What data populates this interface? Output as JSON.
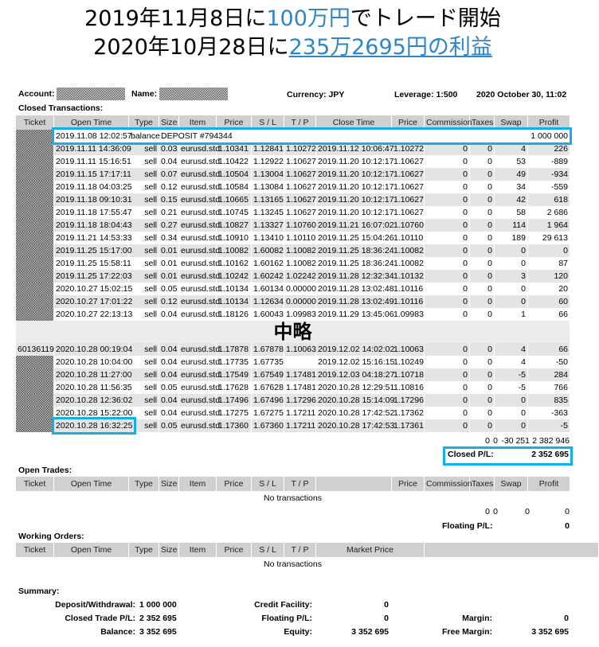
{
  "headline": {
    "line1_a": "2019年11月8日に",
    "line1_b": "100万円",
    "line1_c": "でトレード開始",
    "line2_a": "2020年10月28日に",
    "line2_b": "235万2695円の利益"
  },
  "header": {
    "account_label": "Account:",
    "name_label": "Name:",
    "currency": "Currency: JPY",
    "leverage": "Leverage: 1:500",
    "datetime": "2020 October 30, 11:02"
  },
  "closed": {
    "title": "Closed Transactions:",
    "columns": [
      "Ticket",
      "Open Time",
      "Type",
      "Size",
      "Item",
      "Price",
      "S / L",
      "T / P",
      "Close Time",
      "Price",
      "Commission",
      "Taxes",
      "Swap",
      "Profit"
    ],
    "deposit": {
      "open_time": "2019.11.08 12:02:57",
      "type": "balance",
      "item": "DEPOSIT #794344",
      "profit": "1 000 000"
    },
    "rows": [
      [
        "",
        "2019.11.11 14:36:09",
        "sell",
        "0.03",
        "eurusd.std",
        "1.10341",
        "1.12841",
        "1.10272",
        "2019.11.12 10:06:47",
        "1.10272",
        "0",
        "0",
        "4",
        "226"
      ],
      [
        "",
        "2019.11.11 15:16:51",
        "sell",
        "0.04",
        "eurusd.std",
        "1.10422",
        "1.12922",
        "1.10627",
        "2019.11.20 10:12:17",
        "1.10627",
        "0",
        "0",
        "53",
        "-889"
      ],
      [
        "",
        "2019.11.15 17:17:11",
        "sell",
        "0.07",
        "eurusd.std",
        "1.10504",
        "1.13004",
        "1.10627",
        "2019.11.20 10:12:17",
        "1.10627",
        "0",
        "0",
        "49",
        "-934"
      ],
      [
        "",
        "2019.11.18 04:03:25",
        "sell",
        "0.12",
        "eurusd.std",
        "1.10584",
        "1.13084",
        "1.10627",
        "2019.11.20 10:12:17",
        "1.10627",
        "0",
        "0",
        "34",
        "-559"
      ],
      [
        "",
        "2019.11.18 09:10:31",
        "sell",
        "0.15",
        "eurusd.std",
        "1.10665",
        "1.13165",
        "1.10627",
        "2019.11.20 10:12:17",
        "1.10627",
        "0",
        "0",
        "42",
        "618"
      ],
      [
        "",
        "2019.11.18 17:55:47",
        "sell",
        "0.21",
        "eurusd.std",
        "1.10745",
        "1.13245",
        "1.10627",
        "2019.11.20 10:12:17",
        "1.10627",
        "0",
        "0",
        "58",
        "2 686"
      ],
      [
        "",
        "2019.11.18 18:04:43",
        "sell",
        "0.27",
        "eurusd.std",
        "1.10827",
        "1.13327",
        "1.10760",
        "2019.11.21 16:07:02",
        "1.10760",
        "0",
        "0",
        "114",
        "1 964"
      ],
      [
        "",
        "2019.11.21 14:53:33",
        "sell",
        "0.34",
        "eurusd.std",
        "1.10910",
        "1.13410",
        "1.10110",
        "2019.11.25 15:04:26",
        "1.10110",
        "0",
        "0",
        "189",
        "29 613"
      ],
      [
        "",
        "2019.11.25 15:17:00",
        "sell",
        "0.01",
        "eurusd.std",
        "1.10082",
        "1.60082",
        "1.10082",
        "2019.11.25 18:36:24",
        "1.10082",
        "0",
        "0",
        "0",
        "0"
      ],
      [
        "",
        "2019.11.25 15:58:11",
        "sell",
        "0.01",
        "eurusd.std",
        "1.10162",
        "1.60162",
        "1.10082",
        "2019.11.25 18:36:24",
        "1.10082",
        "0",
        "0",
        "0",
        "87"
      ],
      [
        "",
        "2019.11.25 17:22:03",
        "sell",
        "0.01",
        "eurusd.std",
        "1.10242",
        "1.60242",
        "1.02242",
        "2019.11.28 12:32:34",
        "1.10132",
        "0",
        "0",
        "3",
        "120"
      ],
      [
        "",
        "2020.10.27 15:02:15",
        "sell",
        "0.05",
        "eurusd.std",
        "1.10134",
        "1.60134",
        "0.00000",
        "2019.11.28 13:02:48",
        "1.10116",
        "0",
        "0",
        "0",
        "20"
      ],
      [
        "",
        "2020.10.27 17:01:22",
        "sell",
        "0.12",
        "eurusd.std",
        "1.10134",
        "1.12634",
        "0.00000",
        "2019.11.28 13:02:49",
        "1.10116",
        "0",
        "0",
        "0",
        "60"
      ],
      [
        "",
        "2020.10.27 22:13:13",
        "sell",
        "0.04",
        "eurusd.std",
        "1.18126",
        "1.60043",
        "1.09983",
        "2019.11.29 13:45:06",
        "1.09983",
        "0",
        "0",
        "1",
        "66"
      ],
      [
        "60136119",
        "2020.10.28 00:19:04",
        "sell",
        "0.04",
        "eurusd.std",
        "1.17878",
        "1.67878",
        "1.10063",
        "2019.12.02 14:02:02",
        "1.10063",
        "0",
        "0",
        "4",
        "66"
      ],
      [
        "",
        "2020.10.28 10:04:00",
        "sell",
        "0.04",
        "eurusd.std",
        "1.17735",
        "1.67735",
        "",
        "2019.12.02 15:16:15",
        "1.10249",
        "0",
        "0",
        "4",
        "-50"
      ],
      [
        "",
        "2020.10.28 11:27:00",
        "sell",
        "0.04",
        "eurusd.std",
        "1.17549",
        "1.67549",
        "1.17481",
        "2019.12.03 04:18:27",
        "1.10718",
        "0",
        "0",
        "-5",
        "284"
      ],
      [
        "",
        "2020.10.28 11:56:35",
        "sell",
        "0.05",
        "eurusd.std",
        "1.17628",
        "1.67628",
        "1.17481",
        "2020.10.28 12:29:51",
        "1.10816",
        "0",
        "0",
        "-5",
        "766"
      ],
      [
        "",
        "2020.10.28 12:36:02",
        "sell",
        "0.04",
        "eurusd.std",
        "1.17496",
        "1.67496",
        "1.17296",
        "2020.10.28 15:14:09",
        "1.17296",
        "0",
        "0",
        "0",
        "835"
      ],
      [
        "",
        "2020.10.28 15:22:00",
        "sell",
        "0.04",
        "eurusd.std",
        "1.17275",
        "1.67275",
        "1.17211",
        "2020.10.28 17:42:52",
        "1.17362",
        "0",
        "0",
        "0",
        "-363"
      ],
      [
        "",
        "2020.10.28 16:32:25",
        "sell",
        "0.05",
        "eurusd.std",
        "1.17360",
        "1.67360",
        "1.17211",
        "2020.10.28 17:42:53",
        "1.17361",
        "0",
        "0",
        "0",
        "-5"
      ]
    ],
    "totals": {
      "commission": "0",
      "taxes": "0",
      "swap": "-30 251",
      "profit": "2 382 946"
    },
    "closed_pl_label": "Closed P/L:",
    "closed_pl": "2 352 695",
    "omitted_label": "中略"
  },
  "open_trades": {
    "title": "Open Trades:",
    "columns": [
      "Ticket",
      "Open Time",
      "Type",
      "Size",
      "Item",
      "Price",
      "S / L",
      "T / P",
      "",
      "Price",
      "Commission",
      "Taxes",
      "Swap",
      "Profit"
    ],
    "empty": "No transactions",
    "totals": [
      "0",
      "0",
      "0",
      "0"
    ],
    "floating_label": "Floating P/L:",
    "floating": "0"
  },
  "working_orders": {
    "title": "Working Orders:",
    "columns": [
      "Ticket",
      "Open Time",
      "Type",
      "Size",
      "Item",
      "Price",
      "S / L",
      "T / P",
      "Market Price"
    ],
    "empty": "No transactions"
  },
  "summary": {
    "title": "Summary:",
    "deposit_label": "Deposit/Withdrawal:",
    "deposit": "1 000 000",
    "closed_label": "Closed Trade P/L:",
    "closed": "2 352 695",
    "balance_label": "Balance:",
    "balance": "3 352 695",
    "credit_label": "Credit Facility:",
    "credit": "0",
    "floating_label": "Floating P/L:",
    "floating": "0",
    "equity_label": "Equity:",
    "equity": "3 352 695",
    "margin_label": "Margin:",
    "margin": "0",
    "free_margin_label": "Free Margin:",
    "free_margin": "3 352 695"
  },
  "colors": {
    "highlight": "#11b0ea",
    "headline_blue": "#2e86c9",
    "header_grey": "#d0d0d0",
    "row_grey": "#e4e4e4"
  }
}
